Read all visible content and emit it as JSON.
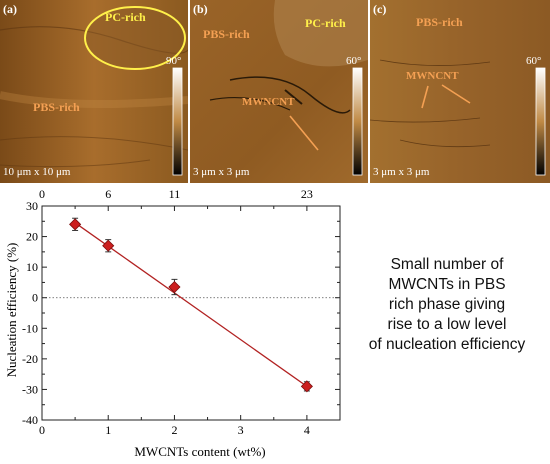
{
  "panels": [
    {
      "label": "(a)",
      "regions": [
        "PC-rich",
        "PBS-rich"
      ],
      "scale": "10 μm x 10 μm",
      "colorbar_max": "90°"
    },
    {
      "label": "(b)",
      "regions": [
        "PBS-rich",
        "PC-rich"
      ],
      "annotation": "MWNCNT",
      "scale": "3 μm x 3 μm",
      "colorbar_max": "60°"
    },
    {
      "label": "(c)",
      "regions": [
        "PBS-rich"
      ],
      "annotation": "MWNCNT",
      "scale": "3 μm x 3 μm",
      "colorbar_max": "60°"
    }
  ],
  "chart_data": {
    "type": "scatter",
    "xlabel": "MWCNTs content (wt%)",
    "ylabel": "Nucleation efficiency (%)",
    "xlim": [
      0,
      4.5
    ],
    "ylim": [
      -40,
      30
    ],
    "xticks": [
      0,
      1,
      2,
      3,
      4
    ],
    "yticks": [
      -40,
      -30,
      -20,
      -10,
      0,
      10,
      20,
      30
    ],
    "top_axis_ticks": [
      {
        "x": 0,
        "label": "0"
      },
      {
        "x": 1,
        "label": "6"
      },
      {
        "x": 2,
        "label": "11"
      },
      {
        "x": 4,
        "label": "23"
      }
    ],
    "points": [
      {
        "x": 0.5,
        "y": 24,
        "err": 2
      },
      {
        "x": 1,
        "y": 17,
        "err": 2
      },
      {
        "x": 2,
        "y": 3.5,
        "err": 2.5
      },
      {
        "x": 4,
        "y": -29,
        "err": 1.5
      }
    ],
    "fit_line": {
      "x": [
        0.5,
        4
      ],
      "y": [
        24.5,
        -29
      ]
    },
    "reference_line_y": 0,
    "marker_color": "#cc1f1f",
    "line_color": "#b22222"
  },
  "caption_lines": [
    "Small number of",
    "MWCNTs in PBS",
    "rich phase giving",
    "rise to a low level",
    "of nucleation efficiency"
  ]
}
